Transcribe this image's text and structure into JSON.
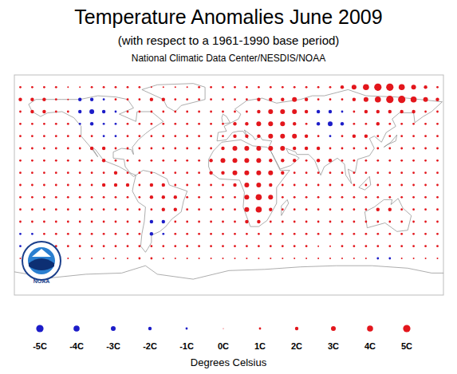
{
  "chart_data": {
    "type": "bubble_map",
    "title": "Temperature Anomalies June 2009",
    "subtitle": "(with respect to a 1961-1990 base period)",
    "source": "National Climatic Data Center/NESDIS/NOAA",
    "logo_text": "NOAA",
    "xlim": [
      -180,
      180
    ],
    "ylim": [
      -90,
      90
    ],
    "tick_labels": false,
    "lon": [
      -175,
      -165,
      -155,
      -145,
      -135,
      -125,
      -115,
      -105,
      -95,
      -85,
      -75,
      -65,
      -55,
      -45,
      -35,
      -25,
      -15,
      -5,
      5,
      15,
      25,
      35,
      45,
      55,
      65,
      75,
      85,
      95,
      105,
      115,
      125,
      135,
      145,
      155,
      165,
      175
    ],
    "lat": [
      80,
      70,
      60,
      50,
      40,
      30,
      20,
      10,
      0,
      -10,
      -20,
      -30,
      -40,
      -50,
      -60
    ],
    "anomalies": [
      [
        1,
        1,
        1,
        1,
        0.5,
        0.5,
        1,
        1,
        1,
        1,
        1,
        0.5,
        0.5,
        0.5,
        0.5,
        1,
        1,
        1,
        1,
        1,
        1,
        1,
        1,
        1,
        1,
        1,
        1,
        2,
        3,
        4,
        5,
        5,
        4,
        3,
        2,
        1
      ],
      [
        2,
        2,
        2,
        1,
        0.5,
        -2,
        -2,
        -1,
        1,
        1,
        1,
        2,
        2,
        1,
        1,
        1,
        1,
        1,
        1,
        1,
        2,
        2,
        2,
        3,
        2,
        1,
        1,
        1,
        2,
        3,
        4,
        5,
        5,
        4,
        3,
        2
      ],
      [
        1,
        2,
        2,
        1,
        1,
        -2,
        -3,
        -2,
        -1,
        1,
        1,
        1,
        1,
        1,
        1,
        1,
        1,
        1,
        1,
        1,
        2,
        3,
        3,
        3,
        2,
        -2,
        -2,
        -1,
        1,
        2,
        2,
        2,
        2,
        2,
        1,
        1
      ],
      [
        1,
        1,
        1,
        1,
        1,
        -1,
        -2,
        -1,
        -1,
        1,
        1,
        1,
        1,
        1,
        1,
        1,
        1,
        1,
        2,
        2,
        3,
        3,
        3,
        2,
        1,
        -2,
        -3,
        -2,
        1,
        1,
        2,
        1,
        1,
        1,
        1,
        1
      ],
      [
        1,
        1,
        1,
        1,
        1,
        1,
        1,
        -1,
        -1,
        1,
        1,
        1,
        1,
        1,
        1,
        1,
        1,
        1,
        2,
        2,
        2,
        3,
        3,
        3,
        2,
        1,
        -1,
        1,
        2,
        2,
        1,
        1,
        1,
        1,
        1,
        1
      ],
      [
        1,
        1,
        1,
        1,
        1,
        1,
        2,
        2,
        1,
        1,
        1,
        1,
        1,
        1,
        1,
        1,
        1,
        2,
        3,
        3,
        3,
        3,
        3,
        2,
        2,
        2,
        1,
        1,
        1,
        1,
        1,
        1,
        1,
        1,
        1,
        1
      ],
      [
        1,
        1,
        1,
        1,
        1,
        1,
        1,
        2,
        1,
        1,
        1,
        1,
        1,
        1,
        1,
        1,
        2,
        3,
        3,
        3,
        3,
        2,
        2,
        2,
        1,
        2,
        2,
        1,
        1,
        1,
        1,
        1,
        1,
        1,
        1,
        1
      ],
      [
        1,
        1,
        1,
        1,
        1,
        1,
        1,
        1,
        2,
        1,
        1,
        1,
        1,
        1,
        1,
        1,
        2,
        2,
        3,
        3,
        3,
        3,
        2,
        1,
        1,
        1,
        1,
        1,
        1,
        1,
        1,
        1,
        1,
        1,
        1,
        1
      ],
      [
        1,
        1,
        1,
        1,
        1,
        1,
        1,
        2,
        2,
        2,
        1,
        2,
        2,
        1,
        1,
        1,
        1,
        1,
        2,
        3,
        3,
        2,
        1,
        1,
        1,
        1,
        1,
        1,
        1,
        1,
        1,
        1,
        1,
        1,
        1,
        1
      ],
      [
        1,
        1,
        1,
        1,
        1,
        1,
        1,
        1,
        1,
        1,
        1,
        2,
        2,
        2,
        1,
        1,
        1,
        1,
        1,
        3,
        4,
        3,
        1,
        1,
        1,
        1,
        1,
        1,
        1,
        1,
        1,
        1,
        1,
        1,
        1,
        1
      ],
      [
        1,
        1,
        1,
        1,
        1,
        1,
        1,
        1,
        1,
        1,
        1,
        1,
        2,
        2,
        1,
        1,
        1,
        1,
        1,
        3,
        4,
        2,
        1,
        1,
        1,
        1,
        1,
        1,
        1,
        1,
        2,
        2,
        1,
        1,
        1,
        1
      ],
      [
        1,
        1,
        1,
        1,
        1,
        1,
        1,
        1,
        1,
        1,
        1,
        -2,
        -2,
        1,
        1,
        1,
        1,
        1,
        1,
        2,
        2,
        1,
        1,
        1,
        1,
        1,
        1,
        1,
        1,
        1,
        1,
        1,
        1,
        1,
        1,
        1
      ],
      [
        -1,
        -1,
        1,
        1,
        1,
        1,
        1,
        1,
        1,
        1,
        1,
        -2,
        -1,
        1,
        1,
        1,
        1,
        1,
        1,
        1,
        1,
        1,
        1,
        1,
        1,
        1,
        1,
        1,
        1,
        1,
        1,
        1,
        1,
        1,
        1,
        1
      ],
      [
        -1,
        -1,
        -1,
        1,
        1,
        1,
        1,
        1,
        1,
        1,
        1,
        1,
        1,
        1,
        1,
        1,
        1,
        1,
        1,
        1,
        1,
        1,
        1,
        1,
        1,
        0.5,
        0.5,
        1,
        1,
        1,
        1,
        1,
        1,
        1,
        1,
        1
      ],
      [
        0.5,
        0.5,
        -1,
        0.5,
        0.5,
        0.5,
        0.5,
        0.5,
        0.5,
        0.5,
        1,
        1,
        0.5,
        0.5,
        0.5,
        0.5,
        0.5,
        0.5,
        0.5,
        0.5,
        0.5,
        0.5,
        0.5,
        0.5,
        0.5,
        0.5,
        0.5,
        0.5,
        0.5,
        0.5,
        -1,
        -1,
        0.5,
        0.5,
        0.5,
        0.5
      ]
    ],
    "colors": [
      "#1c1cc8",
      "#e3161c"
    ],
    "size_lim": [
      -5,
      5
    ],
    "size_ticks": [
      {
        "value": -5,
        "label": "-5C"
      },
      {
        "value": -4,
        "label": "-4C"
      },
      {
        "value": -3,
        "label": "-3C"
      },
      {
        "value": -2,
        "label": "-2C"
      },
      {
        "value": -1,
        "label": "-1C"
      },
      {
        "value": 0,
        "label": "0C"
      },
      {
        "value": 1,
        "label": "1C"
      },
      {
        "value": 2,
        "label": "2C"
      },
      {
        "value": 3,
        "label": "3C"
      },
      {
        "value": 4,
        "label": "4C"
      },
      {
        "value": 5,
        "label": "5C"
      }
    ],
    "size_label": "Degrees Celsius"
  }
}
